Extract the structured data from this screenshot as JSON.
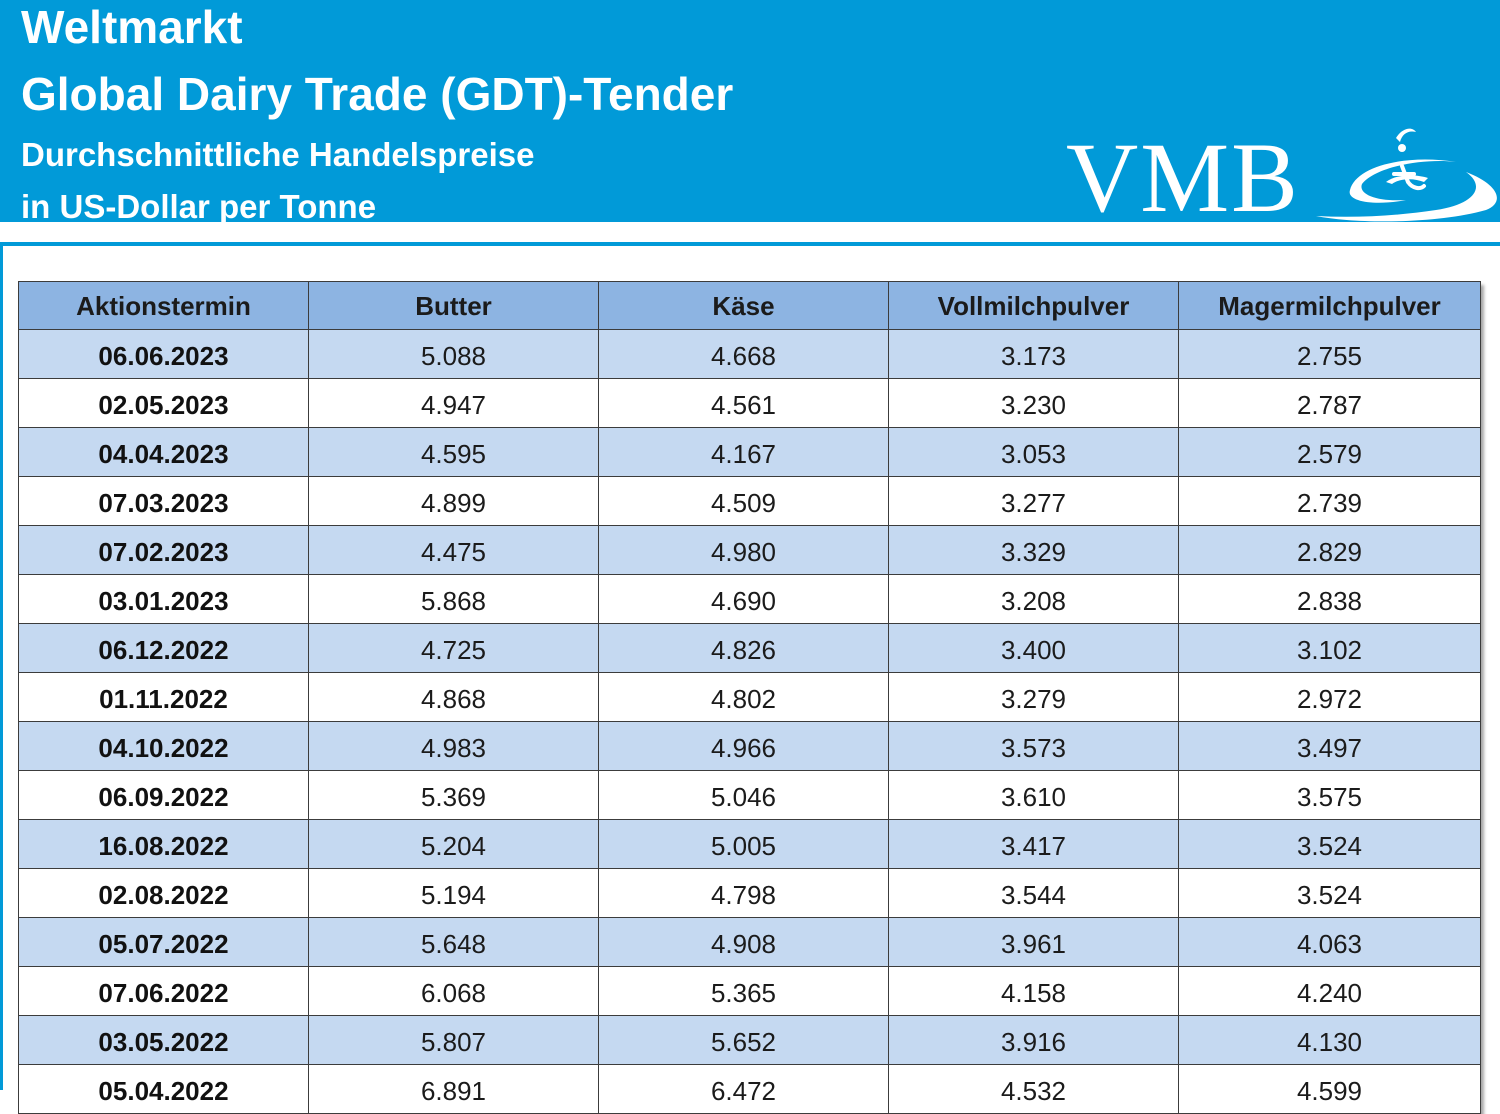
{
  "header": {
    "line1": "Weltmarkt",
    "line2": "Global Dairy Trade (GDT)-Tender",
    "line3": "Durchschnittliche Handelspreise",
    "line4": "in US-Dollar per Tonne",
    "logo_text": "VMB",
    "banner_color": "#019ad8"
  },
  "table": {
    "columns": [
      "Aktionstermin",
      "Butter",
      "Käse",
      "Vollmilchpulver",
      "Magermilchpulver"
    ],
    "header_color": "#8db4e2",
    "stripe_color": "#c5d9f1",
    "rows": [
      [
        "06.06.2023",
        "5.088",
        "4.668",
        "3.173",
        "2.755"
      ],
      [
        "02.05.2023",
        "4.947",
        "4.561",
        "3.230",
        "2.787"
      ],
      [
        "04.04.2023",
        "4.595",
        "4.167",
        "3.053",
        "2.579"
      ],
      [
        "07.03.2023",
        "4.899",
        "4.509",
        "3.277",
        "2.739"
      ],
      [
        "07.02.2023",
        "4.475",
        "4.980",
        "3.329",
        "2.829"
      ],
      [
        "03.01.2023",
        "5.868",
        "4.690",
        "3.208",
        "2.838"
      ],
      [
        "06.12.2022",
        "4.725",
        "4.826",
        "3.400",
        "3.102"
      ],
      [
        "01.11.2022",
        "4.868",
        "4.802",
        "3.279",
        "2.972"
      ],
      [
        "04.10.2022",
        "4.983",
        "4.966",
        "3.573",
        "3.497"
      ],
      [
        "06.09.2022",
        "5.369",
        "5.046",
        "3.610",
        "3.575"
      ],
      [
        "16.08.2022",
        "5.204",
        "5.005",
        "3.417",
        "3.524"
      ],
      [
        "02.08.2022",
        "5.194",
        "4.798",
        "3.544",
        "3.524"
      ],
      [
        "05.07.2022",
        "5.648",
        "4.908",
        "3.961",
        "4.063"
      ],
      [
        "07.06.2022",
        "6.068",
        "5.365",
        "4.158",
        "4.240"
      ],
      [
        "03.05.2022",
        "5.807",
        "5.652",
        "3.916",
        "4.130"
      ],
      [
        "05.04.2022",
        "6.891",
        "6.472",
        "4.532",
        "4.599"
      ]
    ]
  }
}
